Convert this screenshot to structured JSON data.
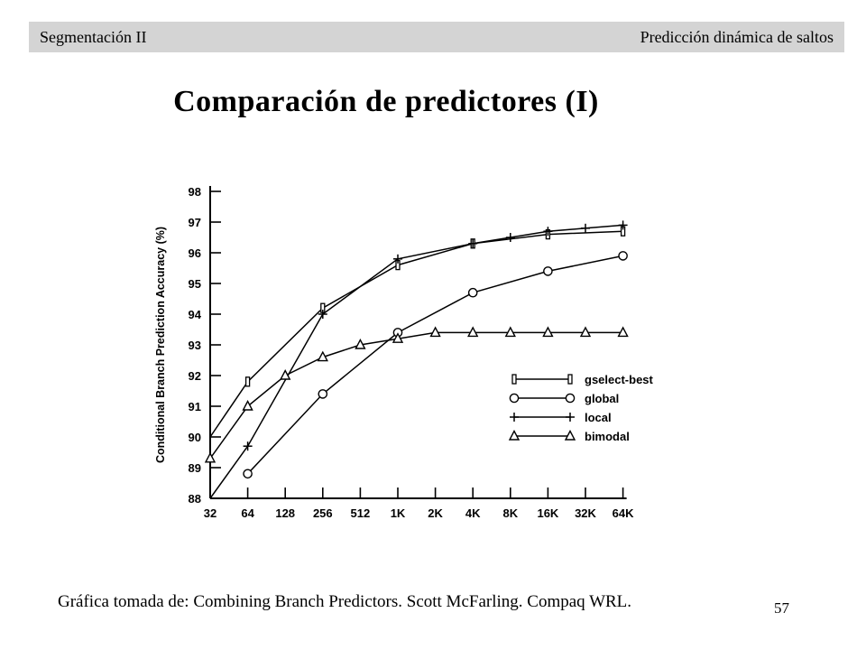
{
  "header": {
    "left": "Segmentación II",
    "right": "Predicción dinámica de saltos"
  },
  "slide_title": "Comparación de predictores (I)",
  "caption": "Gráfica tomada de: Combining Branch Predictors. Scott McFarling. Compaq WRL.",
  "page_number": "57",
  "chart_data": {
    "type": "line",
    "title": "",
    "xlabel": "",
    "ylabel": "Conditional Branch Prediction Accuracy (%)",
    "categories": [
      "32",
      "64",
      "128",
      "256",
      "512",
      "1K",
      "2K",
      "4K",
      "8K",
      "16K",
      "32K",
      "64K"
    ],
    "ylim": [
      88,
      98
    ],
    "yticks": [
      88,
      89,
      90,
      91,
      92,
      93,
      94,
      95,
      96,
      97,
      98
    ],
    "grid": false,
    "legend_position": "right-middle",
    "series": [
      {
        "name": "gselect-best",
        "marker": "bar",
        "values": [
          90.0,
          91.8,
          null,
          94.2,
          null,
          95.6,
          null,
          96.3,
          null,
          96.6,
          null,
          96.7
        ]
      },
      {
        "name": "global",
        "marker": "circle",
        "values": [
          null,
          88.8,
          null,
          91.4,
          null,
          93.4,
          null,
          94.7,
          null,
          95.4,
          null,
          95.9
        ]
      },
      {
        "name": "local",
        "marker": "plus",
        "values": [
          88.0,
          89.7,
          null,
          94.0,
          null,
          95.8,
          null,
          96.3,
          96.5,
          96.7,
          96.8,
          96.9
        ]
      },
      {
        "name": "bimodal",
        "marker": "triangle",
        "values": [
          89.3,
          91.0,
          92.0,
          92.6,
          93.0,
          93.2,
          93.4,
          93.4,
          93.4,
          93.4,
          93.4,
          93.4
        ]
      }
    ]
  }
}
